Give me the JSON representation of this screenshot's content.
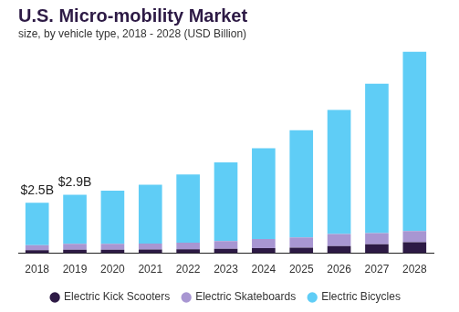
{
  "chart_data": {
    "type": "bar",
    "title": "U.S. Micro-mobility Market",
    "subtitle": "size, by vehicle type, 2018 - 2028 (USD Billion)",
    "categories": [
      "2018",
      "2019",
      "2020",
      "2021",
      "2022",
      "2023",
      "2024",
      "2025",
      "2026",
      "2027",
      "2028"
    ],
    "series": [
      {
        "name": "Electric Kick Scooters",
        "color": "#2d1a45",
        "values": [
          0.15,
          0.17,
          0.17,
          0.18,
          0.2,
          0.22,
          0.25,
          0.28,
          0.35,
          0.45,
          0.55
        ]
      },
      {
        "name": "Electric Skateboards",
        "color": "#a896d2",
        "values": [
          0.25,
          0.3,
          0.3,
          0.3,
          0.32,
          0.38,
          0.45,
          0.5,
          0.6,
          0.55,
          0.55
        ]
      },
      {
        "name": "Electric Bicycles",
        "color": "#5fcdf6",
        "values": [
          2.1,
          2.43,
          2.63,
          2.92,
          3.38,
          3.9,
          4.5,
          5.32,
          6.15,
          7.4,
          8.9
        ]
      }
    ],
    "annotations": [
      {
        "category": "2018",
        "value": 2.5,
        "label": "$2.5B"
      },
      {
        "category": "2019",
        "value": 2.9,
        "label": "$2.9B"
      }
    ],
    "stacked": true,
    "ylim": [
      0,
      10
    ],
    "grid": false,
    "legend": "bottom",
    "tick_labels": "x"
  }
}
